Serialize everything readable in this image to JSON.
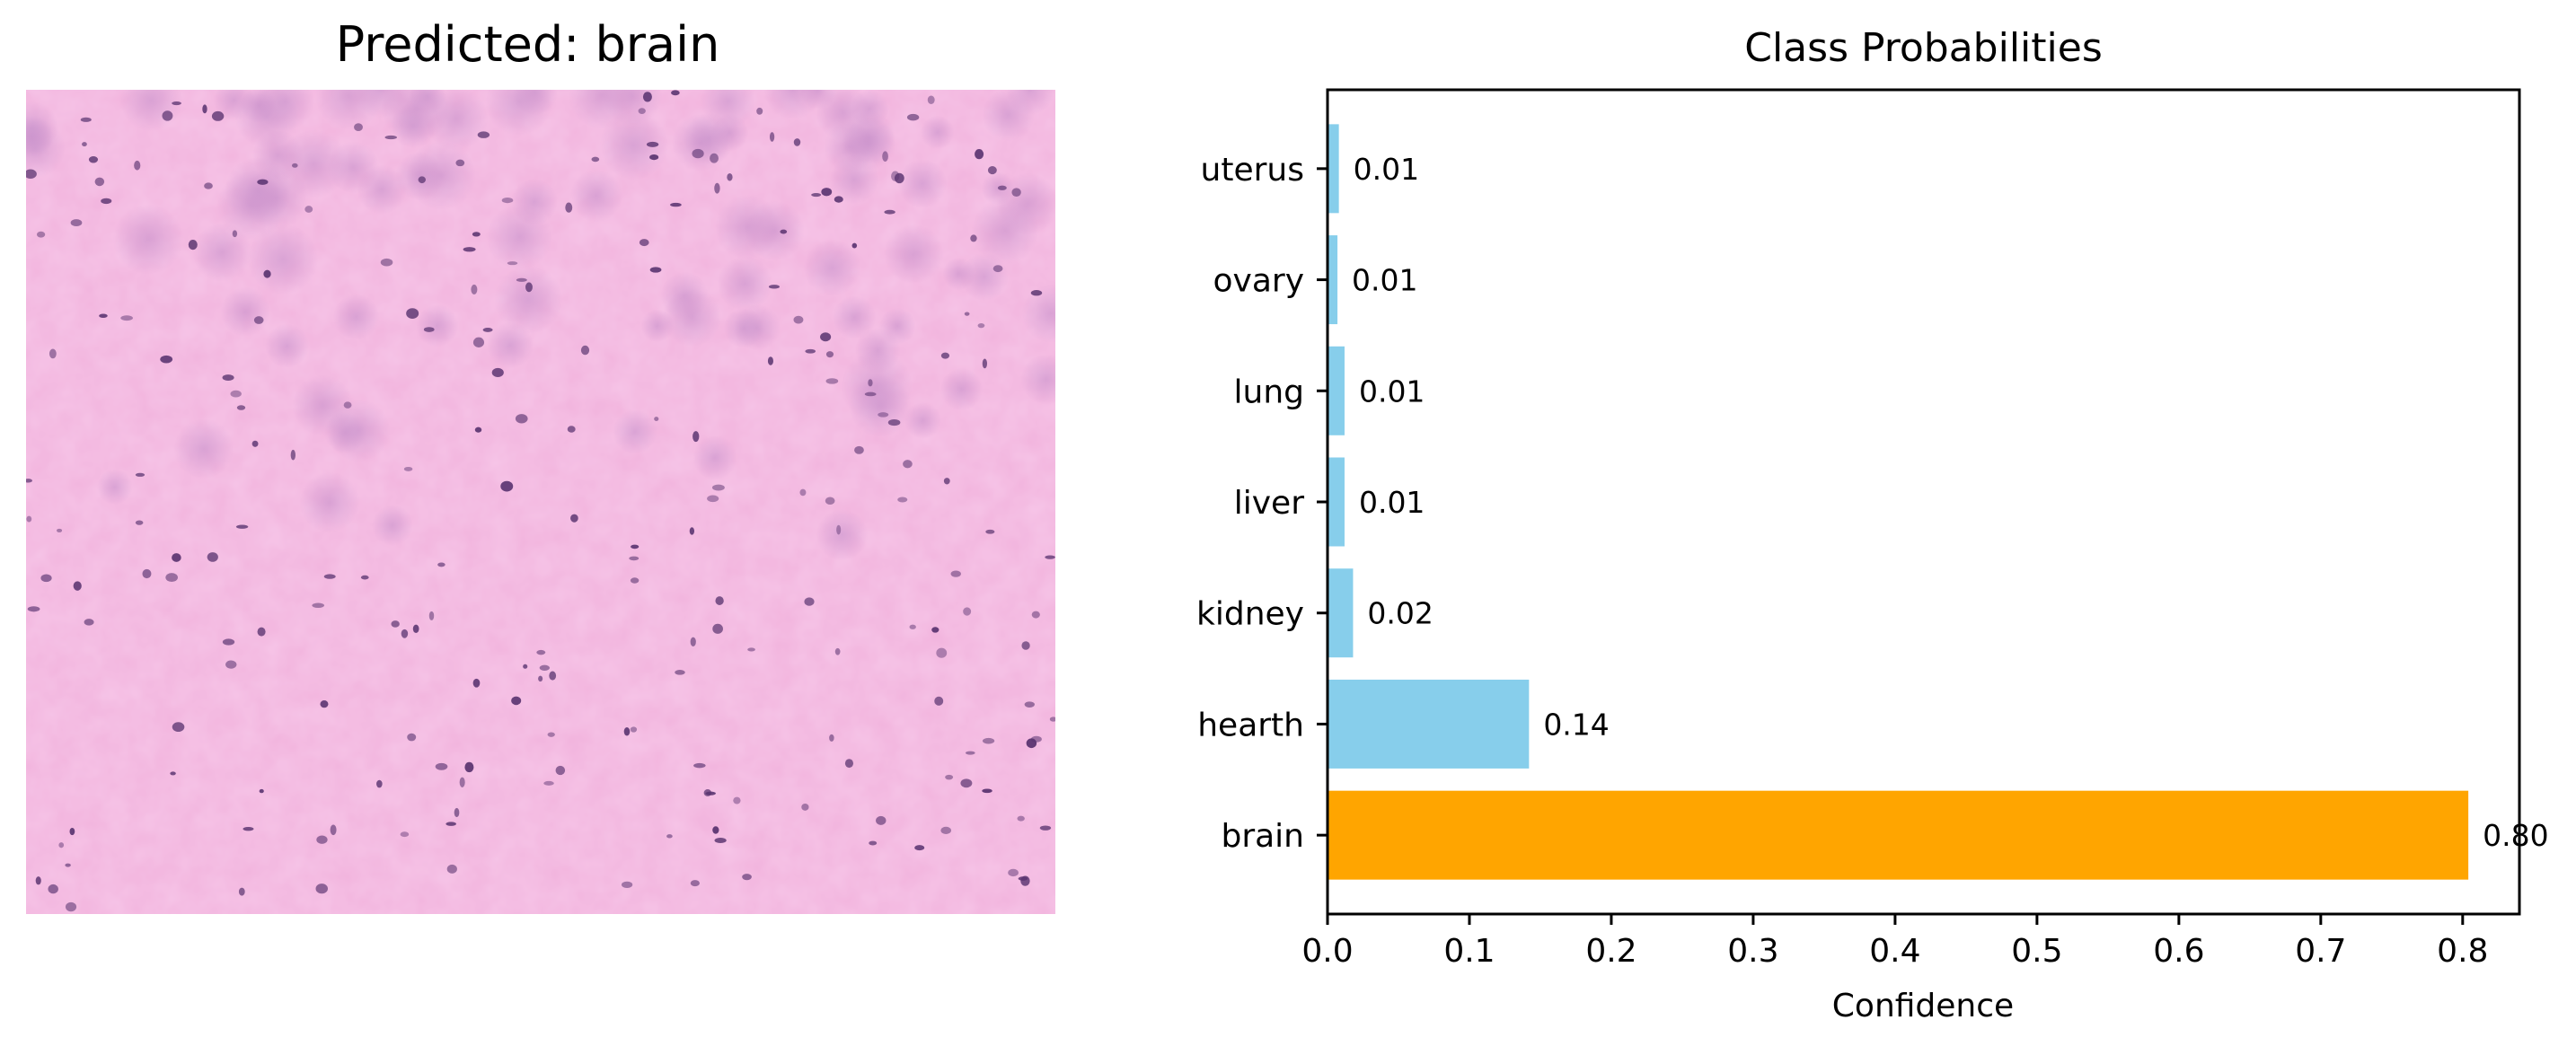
{
  "image_panel": {
    "title": "Predicted: brain"
  },
  "colors": {
    "default_bar": "#87CEEB",
    "predicted_bar": "#FFA500",
    "tissue_background": "#F2B5DE",
    "nuclei": "#5A3470"
  },
  "chart_data": {
    "type": "bar",
    "orientation": "horizontal",
    "title": "Class Probabilities",
    "xlabel": "Confidence",
    "ylabel": "",
    "categories": [
      "brain",
      "hearth",
      "kidney",
      "liver",
      "lung",
      "ovary",
      "uterus"
    ],
    "values": [
      0.804,
      0.142,
      0.018,
      0.012,
      0.012,
      0.007,
      0.008
    ],
    "data_labels": [
      "0.80",
      "0.14",
      "0.02",
      "0.01",
      "0.01",
      "0.01",
      "0.01"
    ],
    "highlight_category": "brain",
    "xlim": [
      0,
      0.84
    ],
    "xticks": [
      0.0,
      0.1,
      0.2,
      0.3,
      0.4,
      0.5,
      0.6,
      0.7,
      0.8
    ],
    "xtick_labels": [
      "0.0",
      "0.1",
      "0.2",
      "0.3",
      "0.4",
      "0.5",
      "0.6",
      "0.7",
      "0.8"
    ],
    "grid": false,
    "legend": "none"
  }
}
